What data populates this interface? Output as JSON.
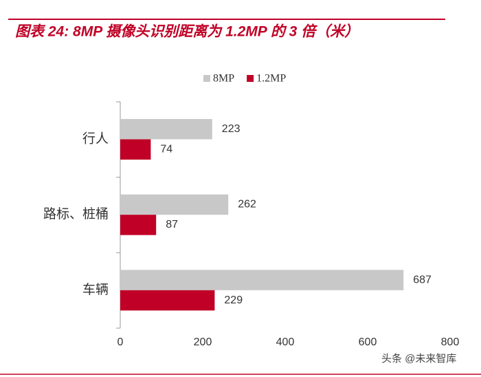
{
  "chart_data": {
    "type": "hbar",
    "title": "图表 24: 8MP 摄像头识别距离为 1.2MP 的 3 倍（米）",
    "categories": [
      "行人",
      "路标、桩桶",
      "车辆"
    ],
    "series": [
      {
        "name": "8MP",
        "color": "#c8c8c8",
        "values": [
          223,
          262,
          687
        ]
      },
      {
        "name": "1.2MP",
        "color": "#c00026",
        "values": [
          74,
          87,
          229
        ]
      }
    ],
    "xlim": [
      0,
      800
    ],
    "xticks": [
      0,
      200,
      400,
      600,
      800
    ],
    "legend": "top"
  },
  "watermark": "头条 @未来智库"
}
